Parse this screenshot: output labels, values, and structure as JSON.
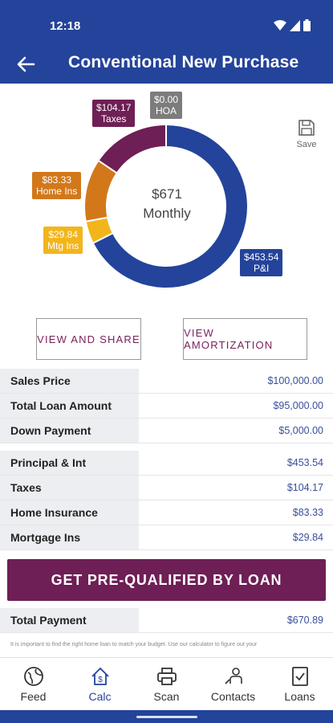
{
  "status": {
    "time": "12:18"
  },
  "header": {
    "title": "Conventional New Purchase"
  },
  "chart_data": {
    "type": "pie",
    "categories": [
      "P&I",
      "Mtg Ins",
      "Home Ins",
      "Taxes",
      "HOA"
    ],
    "values": [
      453.54,
      29.84,
      83.33,
      104.17,
      0.0
    ],
    "center_amount": "$671",
    "center_label": "Monthly",
    "colors": [
      "#24439a",
      "#f2b51b",
      "#d2781b",
      "#6e1f55",
      "#7c7c7c"
    ],
    "callouts": [
      {
        "amount": "$104.17",
        "label": "Taxes"
      },
      {
        "amount": "$0.00",
        "label": "HOA"
      },
      {
        "amount": "$83.33",
        "label": "Home Ins"
      },
      {
        "amount": "$29.84",
        "label": "Mtg Ins"
      },
      {
        "amount": "$453.54",
        "label": "P&I"
      }
    ]
  },
  "toolbar": {
    "save_label": "Save"
  },
  "actions": {
    "view_share": "VIEW AND SHARE",
    "view_amortization": "VIEW AMORTIZATION"
  },
  "loan": [
    {
      "label": "Sales Price",
      "value": "$100,000.00"
    },
    {
      "label": "Total Loan Amount",
      "value": "$95,000.00"
    },
    {
      "label": "Down Payment",
      "value": "$5,000.00"
    }
  ],
  "payment": [
    {
      "label": "Principal & Int",
      "value": "$453.54"
    },
    {
      "label": "Taxes",
      "value": "$104.17"
    },
    {
      "label": "Home Insurance",
      "value": "$83.33"
    },
    {
      "label": "Mortgage Ins",
      "value": "$29.84"
    }
  ],
  "cta": {
    "label": "GET PRE-QUALIFIED BY LOAN"
  },
  "total": {
    "label": "Total Payment",
    "value": "$670.89"
  },
  "disclaimer": "It is important to find the right home loan to match your budget. Use our calculator to figure out your",
  "nav": [
    {
      "label": "Feed",
      "icon": "globe-icon"
    },
    {
      "label": "Calc",
      "icon": "house-dollar-icon"
    },
    {
      "label": "Scan",
      "icon": "printer-icon"
    },
    {
      "label": "Contacts",
      "icon": "contacts-icon"
    },
    {
      "label": "Loans",
      "icon": "checklist-icon"
    }
  ]
}
